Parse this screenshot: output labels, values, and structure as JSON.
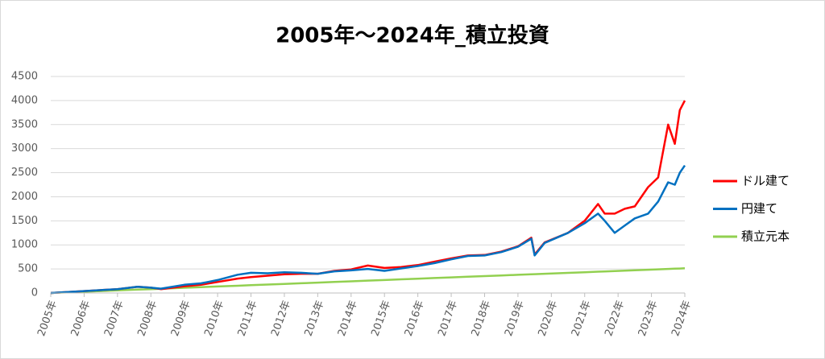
{
  "chart_data": {
    "type": "line",
    "title": "2005年～2024年_積立投資",
    "x": [
      2005,
      2006,
      2007,
      2007.6,
      2008,
      2008.3,
      2009,
      2009.5,
      2010,
      2010.6,
      2011,
      2011.5,
      2012,
      2012.5,
      2013,
      2013.5,
      2014,
      2014.5,
      2015,
      2015.5,
      2016,
      2016.5,
      2017,
      2017.5,
      2018,
      2018.5,
      2019,
      2019.4,
      2019.5,
      2019.8,
      2020.5,
      2021,
      2021.4,
      2021.6,
      2021.9,
      2022.2,
      2022.5,
      2022.9,
      2023.2,
      2023.5,
      2023.7,
      2023.85,
      2024
    ],
    "series": [
      {
        "name": "ドル建て",
        "color": "#ff0000",
        "values": [
          0,
          40,
          80,
          130,
          110,
          80,
          140,
          170,
          230,
          300,
          330,
          360,
          390,
          400,
          400,
          460,
          490,
          570,
          520,
          540,
          580,
          650,
          720,
          780,
          790,
          860,
          970,
          1150,
          800,
          1050,
          1250,
          1500,
          1850,
          1650,
          1650,
          1750,
          1800,
          2200,
          2400,
          3500,
          3100,
          3800,
          4000
        ]
      },
      {
        "name": "円建て",
        "color": "#0070c0",
        "values": [
          0,
          40,
          80,
          130,
          110,
          90,
          170,
          200,
          270,
          380,
          420,
          410,
          430,
          420,
          400,
          450,
          470,
          500,
          460,
          510,
          560,
          620,
          700,
          770,
          780,
          850,
          960,
          1130,
          780,
          1040,
          1250,
          1450,
          1650,
          1500,
          1250,
          1400,
          1550,
          1650,
          1900,
          2300,
          2250,
          2500,
          2650
        ]
      },
      {
        "name": "積立元本",
        "color": "#92d050",
        "values": [
          0,
          27,
          54,
          70,
          81,
          89,
          108,
          122,
          135,
          151,
          162,
          176,
          189,
          203,
          216,
          230,
          243,
          257,
          270,
          284,
          297,
          311,
          324,
          338,
          351,
          365,
          378,
          389,
          392,
          400,
          419,
          432,
          443,
          448,
          456,
          465,
          473,
          483,
          491,
          500,
          505,
          509,
          513
        ]
      }
    ],
    "xlim": [
      2005,
      2024
    ],
    "xticks": [
      {
        "value": 2005,
        "label": "2005年"
      },
      {
        "value": 2006,
        "label": "2006年"
      },
      {
        "value": 2007,
        "label": "2007年"
      },
      {
        "value": 2008,
        "label": "2008年"
      },
      {
        "value": 2009,
        "label": "2009年"
      },
      {
        "value": 2010,
        "label": "2010年"
      },
      {
        "value": 2011,
        "label": "2011年"
      },
      {
        "value": 2012,
        "label": "2012年"
      },
      {
        "value": 2013,
        "label": "2013年"
      },
      {
        "value": 2014,
        "label": "2014年"
      },
      {
        "value": 2015,
        "label": "2015年"
      },
      {
        "value": 2016,
        "label": "2016年"
      },
      {
        "value": 2017,
        "label": "2017年"
      },
      {
        "value": 2018,
        "label": "2018年"
      },
      {
        "value": 2019,
        "label": "2019年"
      },
      {
        "value": 2020,
        "label": "2020年"
      },
      {
        "value": 2021,
        "label": "2021年"
      },
      {
        "value": 2022,
        "label": "2022年"
      },
      {
        "value": 2023,
        "label": "2023年"
      },
      {
        "value": 2024,
        "label": "2024年"
      }
    ],
    "ylim": [
      0,
      4500
    ],
    "yticks": [
      0,
      500,
      1000,
      1500,
      2000,
      2500,
      3000,
      3500,
      4000,
      4500
    ],
    "grid": true,
    "legend": "right"
  }
}
